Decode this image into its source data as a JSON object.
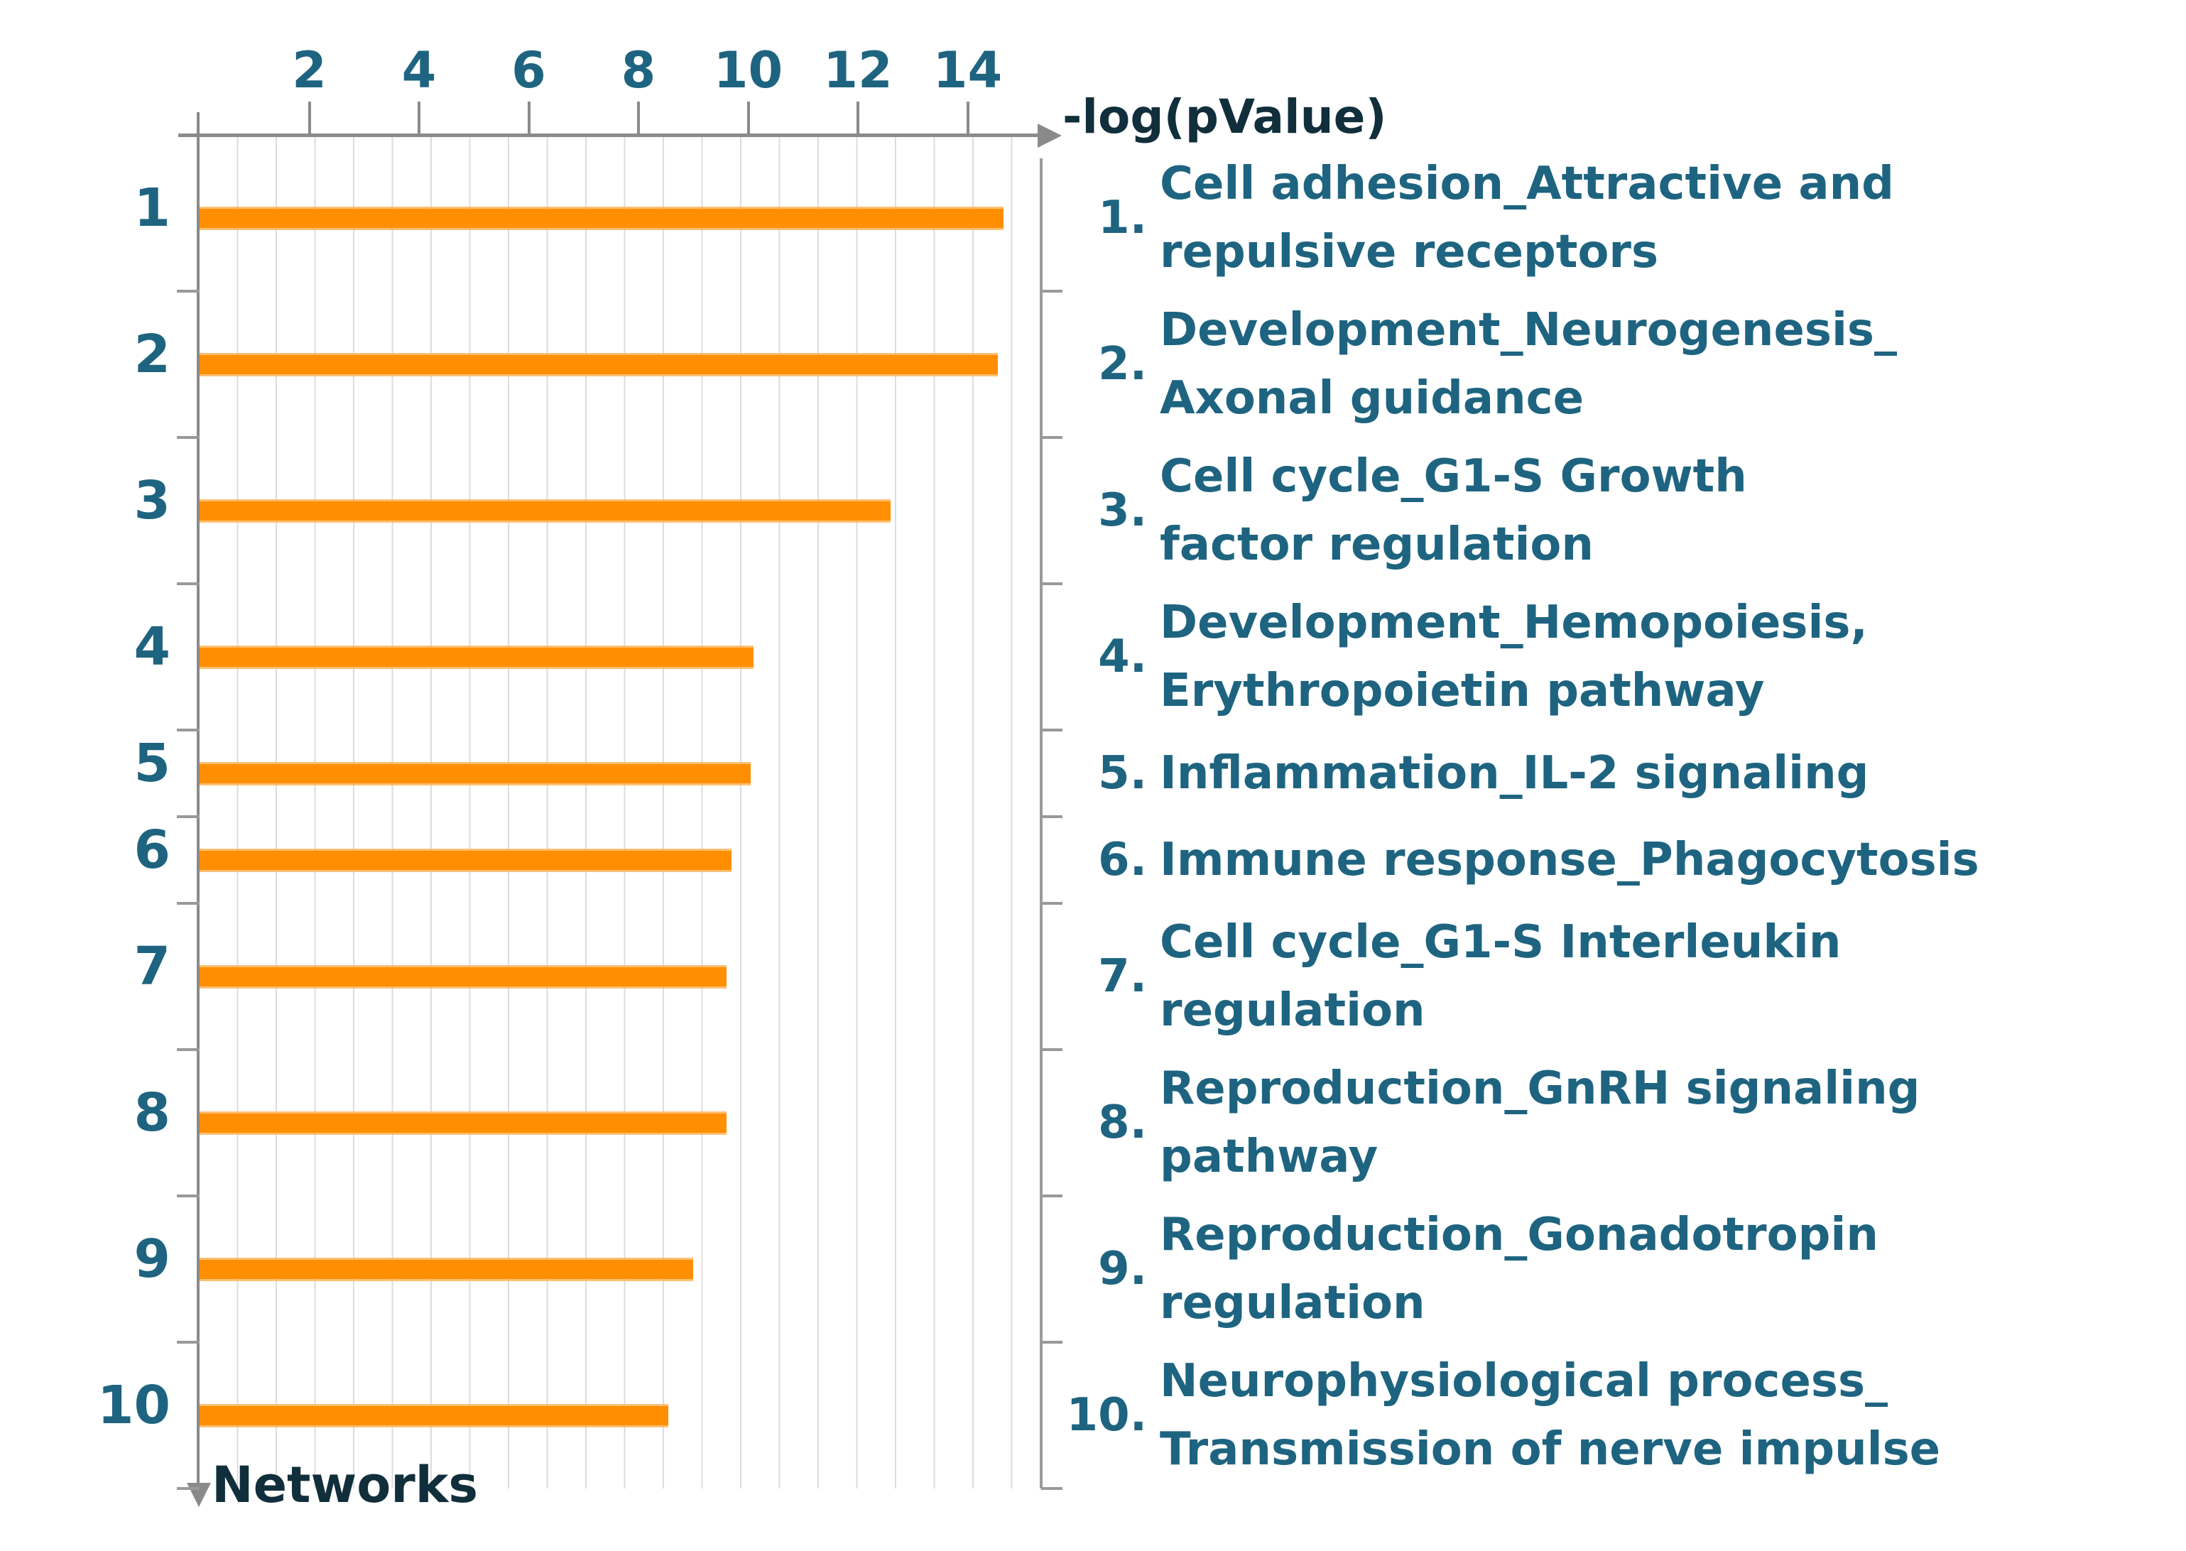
{
  "chart_data": {
    "type": "bar",
    "orientation": "horizontal",
    "x_axis": {
      "label": "-log(pValue)",
      "ticks": [
        2,
        4,
        6,
        8,
        10,
        12,
        14
      ],
      "range": [
        0,
        15.4
      ],
      "grid": true
    },
    "y_axis": {
      "label": "Networks"
    },
    "legend_position": "right",
    "bar_color": "#FF8F00",
    "teal_text_color": "#1E6480",
    "dark_text_color": "#112E3B",
    "axis_color": "#8a8a8a",
    "networks": [
      {
        "rank": "1.",
        "label": "Cell adhesion_Attractive and\nrepulsive receptors",
        "value": 14.65
      },
      {
        "rank": "2.",
        "label": "Development_Neurogenesis_\nAxonal guidance",
        "value": 14.55
      },
      {
        "rank": "3.",
        "label": "Cell cycle_G1-S Growth\nfactor regulation",
        "value": 12.6
      },
      {
        "rank": "4.",
        "label": "Development_Hemopoiesis,\nErythropoietin pathway",
        "value": 10.1
      },
      {
        "rank": "5.",
        "label": "Inflammation_IL-2 signaling",
        "value": 10.05
      },
      {
        "rank": "6.",
        "label": "Immune response_Phagocytosis",
        "value": 9.7
      },
      {
        "rank": "7.",
        "label": "Cell cycle_G1-S Interleukin\nregulation",
        "value": 9.6
      },
      {
        "rank": "8.",
        "label": "Reproduction_GnRH signaling\npathway",
        "value": 9.6
      },
      {
        "rank": "9.",
        "label": "Reproduction_Gonadotropin\nregulation",
        "value": 9.0
      },
      {
        "rank": "10.",
        "label": "Neurophysiological process_\nTransmission of nerve impulse",
        "value": 8.55
      }
    ]
  }
}
